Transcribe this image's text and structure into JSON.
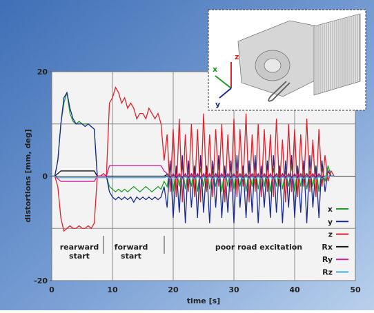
{
  "chart_data": {
    "type": "line",
    "x_label": "time [s]",
    "y_label": "distortions [mm, deg]",
    "xlim": [
      0,
      50
    ],
    "ylim": [
      -20,
      20
    ],
    "xticks": [
      0,
      10,
      20,
      30,
      40,
      50
    ],
    "yticks": [
      -20,
      0,
      20
    ],
    "ygrid": [
      -10,
      0,
      10
    ],
    "grid": true,
    "legend": "lower right",
    "annotations": [
      [
        "rearward",
        "start"
      ],
      [
        "forward",
        "start"
      ],
      [
        "poor road excitation"
      ]
    ],
    "inset_labels": [
      "x",
      "y",
      "z"
    ],
    "x": [
      0,
      0.5,
      1,
      1.5,
      2,
      2.5,
      3,
      3.5,
      4,
      4.5,
      5,
      5.5,
      6,
      6.5,
      7,
      7.5,
      8,
      8.5,
      9,
      9.5,
      10,
      10.5,
      11,
      11.5,
      12,
      12.5,
      13,
      13.5,
      14,
      14.5,
      15,
      15.5,
      16,
      16.5,
      17,
      17.5,
      18,
      18.5,
      19,
      19.5,
      20,
      20.5,
      21,
      21.5,
      22,
      22.5,
      23,
      23.5,
      24,
      24.5,
      25,
      25.5,
      26,
      26.5,
      27,
      27.5,
      28,
      28.5,
      29,
      29.5,
      30,
      30.5,
      31,
      31.5,
      32,
      32.5,
      33,
      33.5,
      34,
      34.5,
      35,
      35.5,
      36,
      36.5,
      37,
      37.5,
      38,
      38.5,
      39,
      39.5,
      40,
      40.5,
      41,
      41.5,
      42,
      42.5,
      43,
      43.5,
      44,
      44.5,
      45,
      45.5,
      46,
      46.5
    ],
    "series": [
      {
        "name": "x",
        "color": "#1f9a2a",
        "values": [
          0,
          0,
          3,
          10,
          14,
          16,
          12,
          10.5,
          10,
          10.5,
          10,
          10,
          10,
          9.5,
          9,
          0,
          0,
          0,
          0,
          -2,
          -2.5,
          -3,
          -2.5,
          -3,
          -2.5,
          -3,
          -2.5,
          -2,
          -2.5,
          -3,
          -2.5,
          -2,
          -2.5,
          -3,
          -2.5,
          -2,
          -2.5,
          -1,
          -2,
          2,
          -3,
          1.5,
          -2,
          2,
          -2.5,
          1,
          -2,
          2,
          -3,
          1.5,
          -2,
          2,
          -2.5,
          1,
          -2,
          2,
          -3,
          1.5,
          -2,
          2,
          -2.5,
          1,
          -2,
          2,
          -3,
          1.5,
          -2,
          2,
          -2.5,
          1,
          -2,
          2,
          -3,
          1.5,
          -2,
          2,
          -2.5,
          1,
          -2,
          2,
          -3,
          1.5,
          -2,
          2,
          -2.5,
          1,
          -2,
          2,
          -3,
          1.5,
          -1,
          2,
          0,
          0
        ]
      },
      {
        "name": "y",
        "color": "#1a2a8c",
        "values": [
          0,
          0,
          3,
          10,
          15,
          16,
          13,
          11,
          10,
          10,
          10,
          9.5,
          10,
          9.5,
          9,
          0,
          0,
          0,
          0,
          -3,
          -4,
          -4.5,
          -4,
          -4.5,
          -4,
          -4.5,
          -4,
          -5,
          -4,
          -4.5,
          -4,
          -4.5,
          -4,
          -4.5,
          -4,
          -4.5,
          -4,
          -2,
          -6,
          3,
          -8,
          2,
          -7,
          4,
          -9,
          3,
          -6,
          2,
          -8,
          4,
          -7,
          2,
          -9,
          3,
          -6,
          4,
          -8,
          2,
          -7,
          3,
          -9,
          4,
          -6,
          2,
          -8,
          3,
          -7,
          4,
          -9,
          2,
          -6,
          3,
          -8,
          4,
          -7,
          2,
          -9,
          3,
          -6,
          4,
          -8,
          2,
          -7,
          3,
          -9,
          4,
          -6,
          2,
          -8,
          3,
          -3,
          1,
          0,
          0
        ]
      },
      {
        "name": "z",
        "color": "#e0202a",
        "values": [
          0,
          0,
          -2,
          -8,
          -10.5,
          -10,
          -9.5,
          -10,
          -10,
          -9.5,
          -10,
          -10,
          -9.5,
          -10,
          -9,
          0,
          0,
          0.5,
          0,
          14,
          15,
          17,
          16,
          14,
          15,
          13,
          14,
          13,
          11,
          12,
          12,
          11,
          13,
          12,
          11,
          12,
          10,
          3,
          8,
          -3,
          9,
          -4,
          11,
          -5,
          8,
          -3,
          10,
          -4,
          9,
          -5,
          12,
          -3,
          8,
          -4,
          9,
          -2,
          10,
          -5,
          8,
          -3,
          11,
          -4,
          9,
          -2,
          12,
          -5,
          8,
          -3,
          10,
          -4,
          9,
          -3,
          8,
          -4,
          11,
          -2,
          7,
          -5,
          10,
          -3,
          9,
          -4,
          8,
          -2,
          11,
          -3,
          7,
          -4,
          9,
          -2,
          4,
          -1,
          1,
          0
        ]
      },
      {
        "name": "Rx",
        "color": "#111111",
        "values": [
          0,
          0,
          0.5,
          1,
          1,
          1,
          1,
          1,
          1,
          1,
          1,
          1,
          1,
          1,
          1,
          0,
          0,
          0,
          0,
          0,
          0,
          0,
          0,
          0,
          0,
          0,
          0,
          0,
          0,
          0,
          0,
          0,
          0,
          0,
          0,
          0,
          0,
          0,
          0.3,
          -0.3,
          0.3,
          -0.3,
          0.3,
          -0.3,
          0.3,
          -0.3,
          0.3,
          -0.3,
          0.3,
          -0.3,
          0.3,
          -0.3,
          0.3,
          -0.3,
          0.3,
          -0.3,
          0.3,
          -0.3,
          0.3,
          -0.3,
          0.3,
          -0.3,
          0.3,
          -0.3,
          0.3,
          -0.3,
          0.3,
          -0.3,
          0.3,
          -0.3,
          0.3,
          -0.3,
          0.3,
          -0.3,
          0.3,
          -0.3,
          0.3,
          -0.3,
          0.3,
          -0.3,
          0.3,
          -0.3,
          0.3,
          -0.3,
          0.3,
          -0.3,
          0.3,
          -0.3,
          0.3,
          -0.3,
          0,
          0,
          0,
          0
        ]
      },
      {
        "name": "Ry",
        "color": "#d0209a",
        "values": [
          0,
          0,
          -0.5,
          -1,
          -1,
          -1,
          -1,
          -1,
          -1,
          -1,
          -1,
          -1,
          -1,
          -1,
          -1,
          0,
          0,
          0,
          0,
          2,
          2,
          2,
          2,
          2,
          2,
          2,
          2,
          2,
          2,
          2,
          2,
          2,
          2,
          2,
          2,
          2,
          2,
          1,
          0.5,
          -0.5,
          0.5,
          -0.5,
          0.5,
          -0.5,
          0.5,
          -0.5,
          0.5,
          -0.5,
          0.5,
          -0.5,
          0.5,
          -0.5,
          0.5,
          -0.5,
          0.5,
          -0.5,
          0.5,
          -0.5,
          0.5,
          -0.5,
          0.5,
          -0.5,
          0.5,
          -0.5,
          0.5,
          -0.5,
          0.5,
          -0.5,
          0.5,
          -0.5,
          0.5,
          -0.5,
          0.5,
          -0.5,
          0.5,
          -0.5,
          0.5,
          -0.5,
          0.5,
          -0.5,
          0.5,
          -0.5,
          0.5,
          -0.5,
          0.5,
          -0.5,
          0.5,
          -0.5,
          0.5,
          -0.5,
          0,
          0,
          0,
          0
        ]
      },
      {
        "name": "Rz",
        "color": "#3fa8e8",
        "values": [
          0,
          0,
          -0.3,
          -0.3,
          -0.3,
          -0.3,
          -0.3,
          -0.3,
          -0.3,
          -0.3,
          -0.3,
          -0.3,
          -0.3,
          -0.3,
          -0.3,
          -0.3,
          -0.3,
          -0.3,
          -0.3,
          -0.3,
          -0.3,
          -0.3,
          -0.3,
          -0.3,
          -0.3,
          -0.3,
          -0.3,
          -0.3,
          -0.3,
          -0.3,
          -0.3,
          -0.3,
          -0.3,
          -0.3,
          -0.3,
          -0.3,
          -0.3,
          -0.3,
          -0.1,
          -0.5,
          -0.1,
          -0.5,
          -0.1,
          -0.5,
          -0.1,
          -0.5,
          -0.1,
          -0.5,
          -0.1,
          -0.5,
          -0.1,
          -0.5,
          -0.1,
          -0.5,
          -0.1,
          -0.5,
          -0.1,
          -0.5,
          -0.1,
          -0.5,
          -0.1,
          -0.5,
          -0.1,
          -0.5,
          -0.1,
          -0.5,
          -0.1,
          -0.5,
          -0.1,
          -0.5,
          -0.1,
          -0.5,
          -0.1,
          -0.5,
          -0.1,
          -0.5,
          -0.1,
          -0.5,
          -0.1,
          -0.5,
          -0.1,
          -0.5,
          -0.1,
          -0.5,
          -0.1,
          -0.5,
          -0.1,
          -0.5,
          -0.1,
          -0.5,
          0,
          0,
          0,
          0
        ]
      }
    ]
  }
}
